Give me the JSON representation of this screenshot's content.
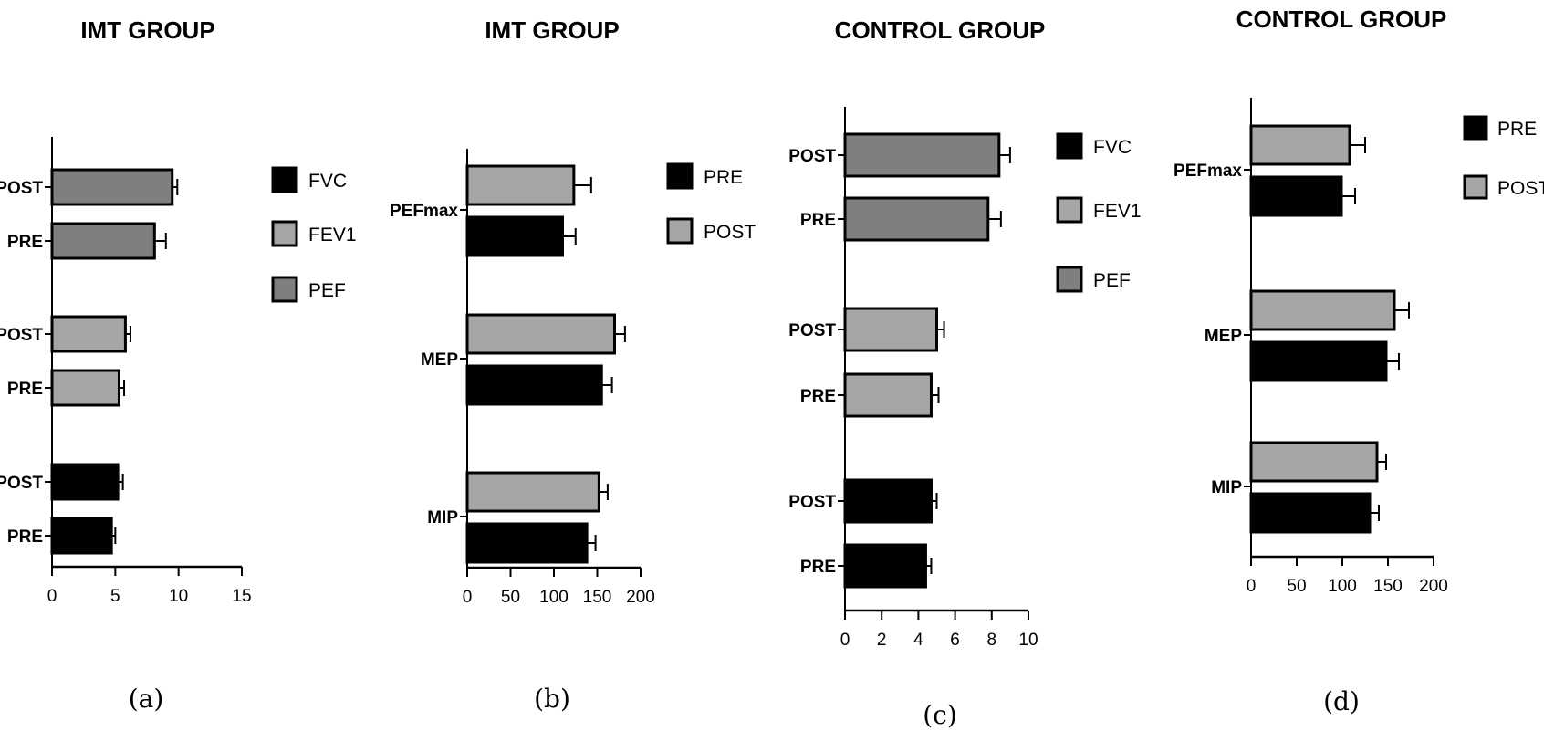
{
  "colors": {
    "FVC": "#000000",
    "FEV1": "#a6a6a6",
    "PEF": "#7f7f7f",
    "PRE": "#000000",
    "POST": "#a6a6a6",
    "bar_edge": "#000000"
  },
  "chart_data": [
    {
      "type": "bar",
      "orientation": "horizontal",
      "title": "IMT GROUP",
      "panel_label": "(a)",
      "categories": [
        "PRE",
        "POST",
        "PRE",
        "POST",
        "PRE",
        "POST"
      ],
      "groups": [
        "FVC",
        "FVC",
        "FEV1",
        "FEV1",
        "PEF",
        "PEF"
      ],
      "values": [
        4.7,
        5.2,
        5.3,
        5.8,
        8.1,
        9.5
      ],
      "errors": [
        0.3,
        0.4,
        0.4,
        0.4,
        0.9,
        0.4
      ],
      "xlim": [
        0,
        15
      ],
      "xticks": [
        "0",
        "5",
        "10",
        "15"
      ],
      "legend": [
        "FVC",
        "FEV1",
        "PEF"
      ],
      "legend_position": "right"
    },
    {
      "type": "bar",
      "orientation": "horizontal",
      "title": "IMT GROUP",
      "panel_label": "(b)",
      "categories": [
        "MIP",
        "MEP",
        "PEFmax"
      ],
      "series": [
        {
          "name": "PRE",
          "values": [
            138,
            155,
            110
          ],
          "errors": [
            10,
            12,
            15
          ]
        },
        {
          "name": "POST",
          "values": [
            152,
            170,
            123
          ],
          "errors": [
            10,
            12,
            20
          ]
        }
      ],
      "xlim": [
        0,
        200
      ],
      "xticks": [
        "0",
        "50",
        "100",
        "150",
        "200"
      ],
      "legend": [
        "PRE",
        "POST"
      ],
      "legend_position": "right"
    },
    {
      "type": "bar",
      "orientation": "horizontal",
      "title": "CONTROL GROUP",
      "panel_label": "(c)",
      "categories": [
        "PRE",
        "POST",
        "PRE",
        "POST",
        "PRE",
        "POST"
      ],
      "groups": [
        "FVC",
        "FVC",
        "FEV1",
        "FEV1",
        "PEF",
        "PEF"
      ],
      "values": [
        4.4,
        4.7,
        4.7,
        5.0,
        7.8,
        8.4
      ],
      "errors": [
        0.3,
        0.3,
        0.4,
        0.4,
        0.7,
        0.6
      ],
      "xlim": [
        0,
        10
      ],
      "xticks": [
        "0",
        "2",
        "4",
        "6",
        "8",
        "10"
      ],
      "legend": [
        "FVC",
        "FEV1",
        "PEF"
      ],
      "legend_position": "right"
    },
    {
      "type": "bar",
      "orientation": "horizontal",
      "title": "CONTROL GROUP",
      "panel_label": "(d)",
      "categories": [
        "MIP",
        "MEP",
        "PEFmax"
      ],
      "series": [
        {
          "name": "PRE",
          "values": [
            130,
            148,
            99
          ],
          "errors": [
            10,
            14,
            15
          ]
        },
        {
          "name": "POST",
          "values": [
            138,
            157,
            108
          ],
          "errors": [
            10,
            16,
            17
          ]
        }
      ],
      "xlim": [
        0,
        200
      ],
      "xticks": [
        "0",
        "50",
        "100",
        "150",
        "200"
      ],
      "legend": [
        "PRE",
        "POST"
      ],
      "legend_position": "right"
    }
  ]
}
